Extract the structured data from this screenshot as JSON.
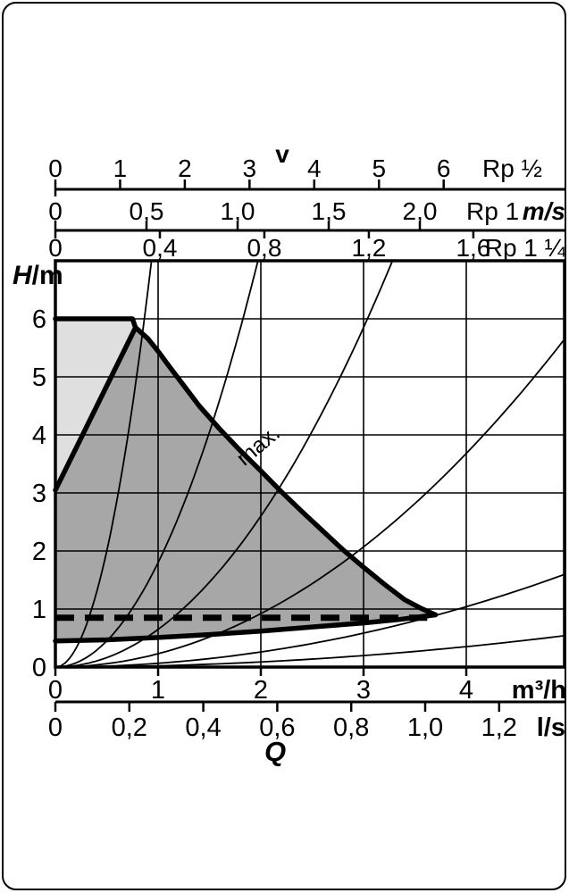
{
  "page": {
    "background": "#ffffff",
    "frame_color": "#000000"
  },
  "chart_data": {
    "type": "line",
    "title": "",
    "x_axis": {
      "symbol": "Q",
      "primary": {
        "unit": "m³/h",
        "tick_values": [
          0,
          1,
          2,
          3,
          4
        ],
        "tick_labels": [
          "0",
          "1",
          "2",
          "3",
          "4"
        ],
        "range": [
          0,
          4.96
        ]
      },
      "secondary": {
        "unit": "l/s",
        "tick_values": [
          0,
          0.2,
          0.4,
          0.6,
          0.8,
          1.0,
          1.2
        ],
        "tick_labels": [
          "0",
          "0,2",
          "0,4",
          "0,6",
          "0,8",
          "1,0",
          "1,2"
        ],
        "range": [
          0,
          1.38
        ]
      }
    },
    "y_axis": {
      "label": "H/m",
      "symbol": "H",
      "unit": "m",
      "tick_values": [
        0,
        1,
        2,
        3,
        4,
        5,
        6
      ],
      "tick_labels": [
        "0",
        "1",
        "2",
        "3",
        "4",
        "5",
        "6"
      ],
      "range": [
        0,
        7
      ]
    },
    "velocity_axes": {
      "symbol": "v",
      "unit": "m/s",
      "scales": [
        {
          "pipe": "Rp ½",
          "tick_values": [
            0,
            1,
            2,
            3,
            4,
            5,
            6
          ],
          "tick_labels": [
            "0",
            "1",
            "2",
            "3",
            "4",
            "5",
            "6"
          ],
          "m3h_per_ms": 0.63
        },
        {
          "pipe": "Rp 1",
          "tick_values": [
            0,
            0.5,
            1.0,
            1.5,
            2.0
          ],
          "tick_labels": [
            "0",
            "0,5",
            "1,0",
            "1,5",
            "2,0"
          ],
          "m3h_per_ms": 1.774
        },
        {
          "pipe": "Rp 1 ¼",
          "tick_values": [
            0,
            0.4,
            0.8,
            1.2,
            1.6
          ],
          "tick_labels": [
            "0",
            "0,4",
            "0,8",
            "1,2",
            "1,6"
          ],
          "m3h_per_ms": 2.543
        }
      ]
    },
    "series": [
      {
        "name": "max-curve",
        "style": "thick",
        "points": [
          [
            0,
            6
          ],
          [
            0.75,
            6
          ],
          [
            0.78,
            5.85
          ],
          [
            0.9,
            5.66
          ],
          [
            1.0,
            5.44
          ],
          [
            1.1,
            5.2
          ],
          [
            1.25,
            4.85
          ],
          [
            1.4,
            4.5
          ],
          [
            1.6,
            4.1
          ],
          [
            1.8,
            3.73
          ],
          [
            2.0,
            3.38
          ],
          [
            2.2,
            3.02
          ],
          [
            2.4,
            2.68
          ],
          [
            2.6,
            2.35
          ],
          [
            2.8,
            2.02
          ],
          [
            3.0,
            1.72
          ],
          [
            3.2,
            1.43
          ],
          [
            3.4,
            1.16
          ],
          [
            3.55,
            1.02
          ],
          [
            3.7,
            0.9
          ]
        ]
      },
      {
        "name": "min-curve",
        "style": "thick",
        "points": [
          [
            0,
            0.45
          ],
          [
            0.5,
            0.47
          ],
          [
            1.0,
            0.51
          ],
          [
            1.5,
            0.56
          ],
          [
            2.0,
            0.62
          ],
          [
            2.5,
            0.69
          ],
          [
            3.0,
            0.76
          ],
          [
            3.35,
            0.82
          ],
          [
            3.7,
            0.9
          ]
        ]
      },
      {
        "name": "lower-boundary-line",
        "style": "thick",
        "points": [
          [
            0,
            3.05
          ],
          [
            0.78,
            5.85
          ]
        ]
      },
      {
        "name": "setpoint-dashed-line",
        "style": "dashed",
        "points": [
          [
            0,
            0.85
          ],
          [
            3.62,
            0.85
          ]
        ]
      }
    ],
    "pipe_friction_curves": {
      "model": "H = k × Q²",
      "k_values": [
        8.0,
        1.8,
        0.65,
        0.23,
        0.065,
        0.022
      ]
    },
    "regions": [
      {
        "name": "upper-duty-range",
        "fill": "#dfdfdf",
        "polygon": [
          [
            0,
            3.05
          ],
          [
            0,
            6
          ],
          [
            0.75,
            6
          ],
          [
            0.78,
            5.85
          ]
        ]
      },
      {
        "name": "operating-range",
        "fill": "#a7a7a7",
        "polygon": "composed: lower-boundary-line + max-curve + reversed min-curve"
      }
    ],
    "annotations": [
      {
        "text": "max.",
        "q": 2.02,
        "h": 3.72,
        "rotation_deg": -40
      }
    ],
    "grid": true,
    "colors": {
      "line": "#000000",
      "background": "#ffffff"
    }
  }
}
